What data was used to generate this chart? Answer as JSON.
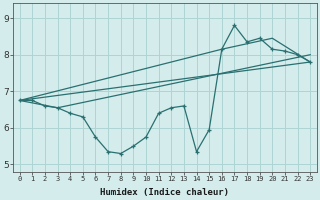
{
  "xlabel": "Humidex (Indice chaleur)",
  "background_color": "#d4ecec",
  "line_color": "#2a7070",
  "grid_color": "#aed4d4",
  "xlim": [
    -0.5,
    23.5
  ],
  "ylim": [
    4.8,
    9.4
  ],
  "xticks": [
    0,
    1,
    2,
    3,
    4,
    5,
    6,
    7,
    8,
    9,
    10,
    11,
    12,
    13,
    14,
    15,
    16,
    17,
    18,
    19,
    20,
    21,
    22,
    23
  ],
  "yticks": [
    5,
    6,
    7,
    8,
    9
  ],
  "line1_x": [
    0,
    1,
    2,
    3,
    4,
    5,
    6,
    7,
    8,
    9,
    10,
    11,
    12,
    13,
    14,
    15,
    16,
    17,
    18,
    19,
    20,
    21,
    22,
    23
  ],
  "line1_y": [
    6.75,
    6.75,
    6.6,
    6.55,
    6.4,
    6.3,
    5.75,
    5.35,
    5.3,
    5.5,
    5.75,
    6.4,
    6.55,
    6.6,
    5.35,
    5.95,
    8.15,
    8.8,
    8.35,
    8.45,
    8.15,
    8.1,
    8.0,
    7.8
  ],
  "line2_x": [
    0,
    23
  ],
  "line2_y": [
    6.75,
    7.8
  ],
  "line3_x": [
    0,
    3,
    23
  ],
  "line3_y": [
    6.75,
    6.55,
    8.0
  ],
  "line4_x": [
    0,
    16,
    20,
    23
  ],
  "line4_y": [
    6.75,
    8.15,
    8.45,
    7.8
  ]
}
